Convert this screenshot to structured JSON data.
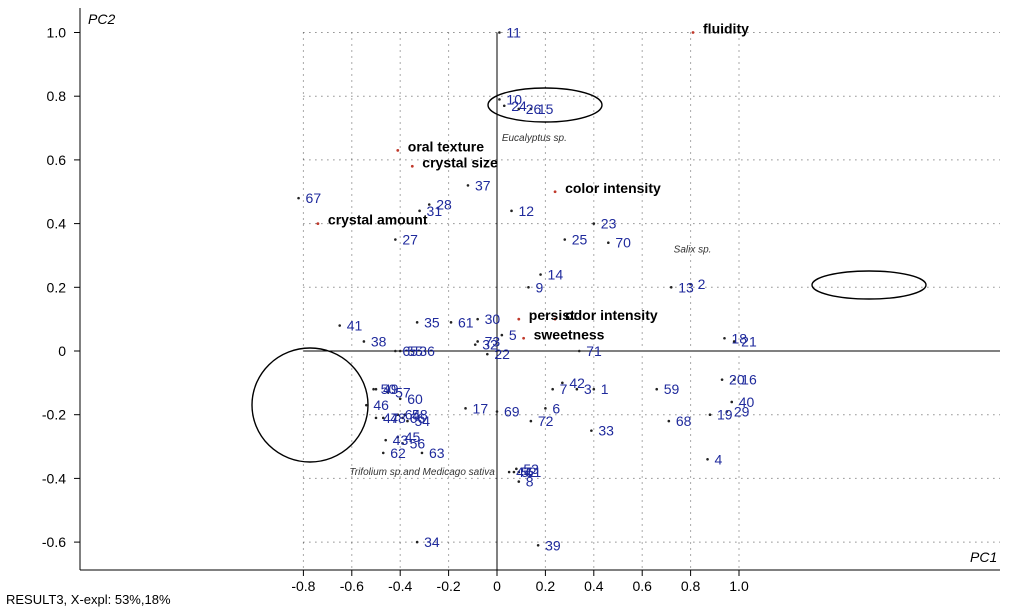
{
  "chart_data": {
    "type": "scatter",
    "title": "",
    "xlabel": "PC1",
    "ylabel": "PC2",
    "xlim": [
      -0.85,
      1.03
    ],
    "ylim": [
      -0.67,
      1.06
    ],
    "xticks": [
      -0.8,
      -0.6,
      -0.4,
      -0.2,
      0,
      0.2,
      0.4,
      0.6,
      0.8,
      1.0
    ],
    "yticks": [
      -0.6,
      -0.4,
      -0.2,
      0,
      0.2,
      0.4,
      0.6,
      0.8,
      1.0
    ],
    "xtick_labels": [
      "-0.8",
      "-0.6",
      "-0.4",
      "-0.2",
      "0",
      "0.2",
      "0.4",
      "0.6",
      "0.8",
      "1.0"
    ],
    "ytick_labels": [
      "-0.6",
      "-0.4",
      "-0.2",
      "0",
      "0.2",
      "0.4",
      "0.6",
      "0.8",
      "1.0"
    ],
    "grid": true,
    "series": [
      {
        "name": "",
        "color": "#1f2a9c",
        "points": [
          {
            "label": "1",
            "x": 0.4,
            "y": -0.12
          },
          {
            "label": "2",
            "x": 0.8,
            "y": 0.21
          },
          {
            "label": "3",
            "x": 0.33,
            "y": -0.12
          },
          {
            "label": "4",
            "x": 0.87,
            "y": -0.34
          },
          {
            "label": "5",
            "x": 0.02,
            "y": 0.05
          },
          {
            "label": "6",
            "x": 0.2,
            "y": -0.18
          },
          {
            "label": "7",
            "x": 0.23,
            "y": -0.12
          },
          {
            "label": "8",
            "x": 0.09,
            "y": -0.41
          },
          {
            "label": "9",
            "x": 0.13,
            "y": 0.2
          },
          {
            "label": "10",
            "x": 0.01,
            "y": 0.79
          },
          {
            "label": "11",
            "x": 0.01,
            "y": 1.0
          },
          {
            "label": "12",
            "x": 0.06,
            "y": 0.44
          },
          {
            "label": "13",
            "x": 0.72,
            "y": 0.2
          },
          {
            "label": "14",
            "x": 0.18,
            "y": 0.24
          },
          {
            "label": "15",
            "x": 0.14,
            "y": 0.76
          },
          {
            "label": "16",
            "x": 0.98,
            "y": -0.09
          },
          {
            "label": "17",
            "x": -0.13,
            "y": -0.18
          },
          {
            "label": "18",
            "x": 0.94,
            "y": 0.04
          },
          {
            "label": "19",
            "x": 0.88,
            "y": -0.2
          },
          {
            "label": "20",
            "x": 0.93,
            "y": -0.09
          },
          {
            "label": "21",
            "x": 0.98,
            "y": 0.03
          },
          {
            "label": "22",
            "x": -0.04,
            "y": -0.01
          },
          {
            "label": "23",
            "x": 0.4,
            "y": 0.4
          },
          {
            "label": "24",
            "x": 0.03,
            "y": 0.77
          },
          {
            "label": "25",
            "x": 0.28,
            "y": 0.35
          },
          {
            "label": "26",
            "x": 0.09,
            "y": 0.76
          },
          {
            "label": "27",
            "x": -0.42,
            "y": 0.35
          },
          {
            "label": "28",
            "x": -0.28,
            "y": 0.46
          },
          {
            "label": "29",
            "x": 0.95,
            "y": -0.19
          },
          {
            "label": "30",
            "x": -0.08,
            "y": 0.1
          },
          {
            "label": "31",
            "x": -0.32,
            "y": 0.44
          },
          {
            "label": "32",
            "x": -0.09,
            "y": 0.02
          },
          {
            "label": "33",
            "x": 0.39,
            "y": -0.25
          },
          {
            "label": "34",
            "x": -0.33,
            "y": -0.6
          },
          {
            "label": "35",
            "x": -0.33,
            "y": 0.09
          },
          {
            "label": "36",
            "x": -0.35,
            "y": 0.0
          },
          {
            "label": "37",
            "x": -0.12,
            "y": 0.52
          },
          {
            "label": "38",
            "x": -0.55,
            "y": 0.03
          },
          {
            "label": "39",
            "x": 0.17,
            "y": -0.61
          },
          {
            "label": "40",
            "x": 0.97,
            "y": -0.16
          },
          {
            "label": "41",
            "x": -0.65,
            "y": 0.08
          },
          {
            "label": "42",
            "x": 0.27,
            "y": -0.1
          },
          {
            "label": "43",
            "x": -0.46,
            "y": -0.28
          },
          {
            "label": "44",
            "x": 0.05,
            "y": -0.38
          },
          {
            "label": "45",
            "x": -0.41,
            "y": -0.27
          },
          {
            "label": "46",
            "x": -0.54,
            "y": -0.17
          },
          {
            "label": "47",
            "x": -0.5,
            "y": -0.21
          },
          {
            "label": "48",
            "x": -0.47,
            "y": -0.21
          },
          {
            "label": "49",
            "x": -0.5,
            "y": -0.12
          },
          {
            "label": "50",
            "x": -0.51,
            "y": -0.12
          },
          {
            "label": "51",
            "x": 0.09,
            "y": -0.38
          },
          {
            "label": "52",
            "x": 0.07,
            "y": -0.38
          },
          {
            "label": "53",
            "x": 0.08,
            "y": -0.37
          },
          {
            "label": "54",
            "x": -0.37,
            "y": -0.22
          },
          {
            "label": "55",
            "x": -0.4,
            "y": 0.0
          },
          {
            "label": "56",
            "x": -0.39,
            "y": -0.29
          },
          {
            "label": "57",
            "x": -0.45,
            "y": -0.13
          },
          {
            "label": "58",
            "x": -0.38,
            "y": -0.2
          },
          {
            "label": "59",
            "x": 0.66,
            "y": -0.12
          },
          {
            "label": "60",
            "x": -0.4,
            "y": -0.15
          },
          {
            "label": "61",
            "x": -0.19,
            "y": 0.09
          },
          {
            "label": "62",
            "x": -0.47,
            "y": -0.32
          },
          {
            "label": "63",
            "x": -0.31,
            "y": -0.32
          },
          {
            "label": "64",
            "x": -0.41,
            "y": -0.2
          },
          {
            "label": "65",
            "x": -0.42,
            "y": 0.0
          },
          {
            "label": "66",
            "x": -0.39,
            "y": -0.21
          },
          {
            "label": "67",
            "x": -0.82,
            "y": 0.48
          },
          {
            "label": "68",
            "x": 0.71,
            "y": -0.22
          },
          {
            "label": "69",
            "x": 0.0,
            "y": -0.19
          },
          {
            "label": "70",
            "x": 0.46,
            "y": 0.34
          },
          {
            "label": "71",
            "x": 0.34,
            "y": 0.0
          },
          {
            "label": "72",
            "x": 0.14,
            "y": -0.22
          },
          {
            "label": "73",
            "x": -0.08,
            "y": 0.03
          }
        ]
      },
      {
        "name": "",
        "color": "#000000",
        "points": [
          {
            "label": "fluidity",
            "x": 0.81,
            "y": 1.0
          },
          {
            "label": "oral texture",
            "x": -0.41,
            "y": 0.63
          },
          {
            "label": "crystal size",
            "x": -0.35,
            "y": 0.58
          },
          {
            "label": "color intensity",
            "x": 0.24,
            "y": 0.5
          },
          {
            "label": "crystal amount",
            "x": -0.74,
            "y": 0.4
          },
          {
            "label": "persist",
            "x": 0.09,
            "y": 0.1
          },
          {
            "label": "odor intensity",
            "x": 0.24,
            "y": 0.1
          },
          {
            "label": "sweetness",
            "x": 0.11,
            "y": 0.04
          }
        ]
      }
    ],
    "annotations": [
      {
        "text": "Eucalyptus sp.",
        "x": 0.02,
        "y": 0.66
      },
      {
        "text": "Salix sp.",
        "x": 0.73,
        "y": 0.31
      },
      {
        "text": "Trifolium sp.and Medicago sativa",
        "x": -0.61,
        "y": -0.39
      }
    ]
  },
  "footer": {
    "text": "RESULT3, X-expl: 53%,18%"
  }
}
